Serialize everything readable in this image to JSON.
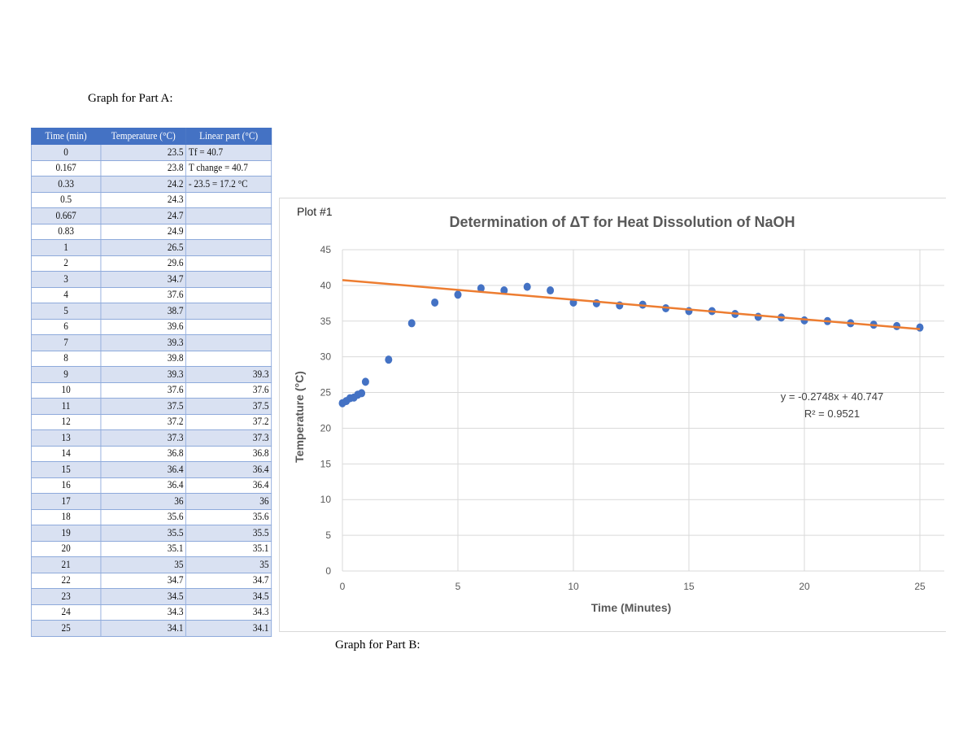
{
  "headings": {
    "part_a": "Graph for Part A:",
    "part_b": "Graph for Part B:"
  },
  "table": {
    "headers": [
      "Time (min)",
      "Temperature (°C)",
      "Linear part (°C)"
    ],
    "rows": [
      [
        "0",
        "23.5",
        "Tf = 40.7"
      ],
      [
        "0.167",
        "23.8",
        "T change = 40.7"
      ],
      [
        "0.33",
        "24.2",
        "- 23.5 = 17.2 °C"
      ],
      [
        "0.5",
        "24.3",
        ""
      ],
      [
        "0.667",
        "24.7",
        ""
      ],
      [
        "0.83",
        "24.9",
        ""
      ],
      [
        "1",
        "26.5",
        ""
      ],
      [
        "2",
        "29.6",
        ""
      ],
      [
        "3",
        "34.7",
        ""
      ],
      [
        "4",
        "37.6",
        ""
      ],
      [
        "5",
        "38.7",
        ""
      ],
      [
        "6",
        "39.6",
        ""
      ],
      [
        "7",
        "39.3",
        ""
      ],
      [
        "8",
        "39.8",
        ""
      ],
      [
        "9",
        "39.3",
        "39.3"
      ],
      [
        "10",
        "37.6",
        "37.6"
      ],
      [
        "11",
        "37.5",
        "37.5"
      ],
      [
        "12",
        "37.2",
        "37.2"
      ],
      [
        "13",
        "37.3",
        "37.3"
      ],
      [
        "14",
        "36.8",
        "36.8"
      ],
      [
        "15",
        "36.4",
        "36.4"
      ],
      [
        "16",
        "36.4",
        "36.4"
      ],
      [
        "17",
        "36",
        "36"
      ],
      [
        "18",
        "35.6",
        "35.6"
      ],
      [
        "19",
        "35.5",
        "35.5"
      ],
      [
        "20",
        "35.1",
        "35.1"
      ],
      [
        "21",
        "35",
        "35"
      ],
      [
        "22",
        "34.7",
        "34.7"
      ],
      [
        "23",
        "34.5",
        "34.5"
      ],
      [
        "24",
        "34.3",
        "34.3"
      ],
      [
        "25",
        "34.1",
        "34.1"
      ]
    ]
  },
  "chart_data": {
    "type": "scatter",
    "plot_label": "Plot #1",
    "title": "Determination of ΔT for Heat Dissolution of NaOH",
    "xlabel": "Time (Minutes)",
    "ylabel": "Temperature (°C)",
    "xlim": [
      0,
      25
    ],
    "ylim": [
      0,
      45
    ],
    "xticks": [
      0,
      5,
      10,
      15,
      20,
      25
    ],
    "yticks": [
      0,
      5,
      10,
      15,
      20,
      25,
      30,
      35,
      40,
      45
    ],
    "grid": true,
    "x": [
      0,
      0.167,
      0.33,
      0.5,
      0.667,
      0.83,
      1,
      2,
      3,
      4,
      5,
      6,
      7,
      8,
      9,
      10,
      11,
      12,
      13,
      14,
      15,
      16,
      17,
      18,
      19,
      20,
      21,
      22,
      23,
      24,
      25
    ],
    "y": [
      23.5,
      23.8,
      24.2,
      24.3,
      24.7,
      24.9,
      26.5,
      29.6,
      34.7,
      37.6,
      38.7,
      39.6,
      39.3,
      39.8,
      39.3,
      37.6,
      37.5,
      37.2,
      37.3,
      36.8,
      36.4,
      36.4,
      36,
      35.6,
      35.5,
      35.1,
      35,
      34.7,
      34.5,
      34.3,
      34.1
    ],
    "trendline": {
      "slope": -0.2748,
      "intercept": 40.747,
      "equation": "y = -0.2748x + 40.747",
      "r2": "R² = 0.9521",
      "x_range": [
        0,
        25
      ]
    },
    "colors": {
      "points": "#4472c4",
      "trendline": "#ed7d31",
      "grid": "#d9d9d9"
    }
  }
}
